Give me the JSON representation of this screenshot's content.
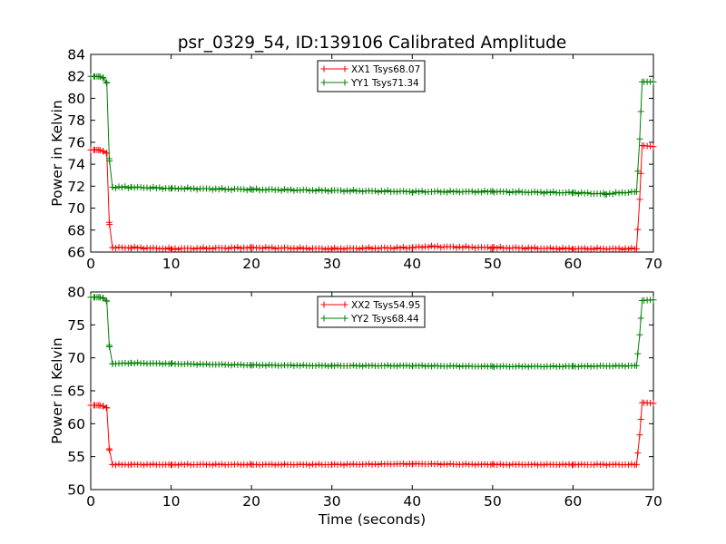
{
  "title": "psr_0329_54, ID:139106 Calibrated Amplitude",
  "colors": {
    "xx": "#ff0000",
    "yy": "#008000"
  },
  "chart_data": [
    {
      "type": "line",
      "xlabel": "",
      "ylabel": "Power in Kelvin",
      "xlim": [
        0,
        70
      ],
      "ylim": [
        66,
        84
      ],
      "xticks": [
        0,
        10,
        20,
        30,
        40,
        50,
        60,
        70
      ],
      "yticks": [
        66,
        68,
        70,
        72,
        74,
        76,
        78,
        80,
        82,
        84
      ],
      "legend": "top-center",
      "series": [
        {
          "name": "XX1 Tsys68.07",
          "color": "#ff0000",
          "marker": "+",
          "points": [
            [
              0,
              75.3
            ],
            [
              0.5,
              75.3
            ],
            [
              1,
              75.3
            ],
            [
              1.5,
              75.2
            ],
            [
              2,
              75.0
            ],
            [
              2.3,
              68.7
            ],
            [
              2.7,
              66.4
            ],
            [
              5,
              66.4
            ],
            [
              10,
              66.3
            ],
            [
              20,
              66.4
            ],
            [
              30,
              66.3
            ],
            [
              40,
              66.4
            ],
            [
              42,
              66.5
            ],
            [
              50,
              66.4
            ],
            [
              60,
              66.3
            ],
            [
              67.9,
              66.3
            ],
            [
              68.3,
              70.8
            ],
            [
              68.6,
              75.7
            ],
            [
              70,
              75.6
            ]
          ]
        },
        {
          "name": "YY1 Tsys71.34",
          "color": "#008000",
          "marker": "+",
          "points": [
            [
              0,
              82.0
            ],
            [
              0.5,
              82.0
            ],
            [
              1,
              82.0
            ],
            [
              1.5,
              81.9
            ],
            [
              2,
              81.4
            ],
            [
              2.3,
              74.5
            ],
            [
              2.7,
              71.9
            ],
            [
              5,
              71.9
            ],
            [
              10,
              71.8
            ],
            [
              20,
              71.7
            ],
            [
              30,
              71.6
            ],
            [
              40,
              71.5
            ],
            [
              50,
              71.5
            ],
            [
              60,
              71.4
            ],
            [
              64,
              71.3
            ],
            [
              67.9,
              71.5
            ],
            [
              68.3,
              76.3
            ],
            [
              68.6,
              81.5
            ],
            [
              70,
              81.5
            ]
          ]
        }
      ]
    },
    {
      "type": "line",
      "xlabel": "Time (seconds)",
      "ylabel": "Power in Kelvin",
      "xlim": [
        0,
        70
      ],
      "ylim": [
        50,
        80
      ],
      "xticks": [
        0,
        10,
        20,
        30,
        40,
        50,
        60,
        70
      ],
      "yticks": [
        50,
        55,
        60,
        65,
        70,
        75,
        80
      ],
      "legend": "top-center",
      "series": [
        {
          "name": "XX2 Tsys54.95",
          "color": "#ff0000",
          "marker": "+",
          "points": [
            [
              0,
              62.8
            ],
            [
              0.5,
              62.8
            ],
            [
              1,
              62.8
            ],
            [
              1.5,
              62.7
            ],
            [
              2,
              62.4
            ],
            [
              2.3,
              56.2
            ],
            [
              2.7,
              53.8
            ],
            [
              5,
              53.8
            ],
            [
              10,
              53.8
            ],
            [
              20,
              53.8
            ],
            [
              30,
              53.8
            ],
            [
              40,
              53.9
            ],
            [
              50,
              53.8
            ],
            [
              60,
              53.8
            ],
            [
              67.9,
              53.8
            ],
            [
              68.3,
              58.3
            ],
            [
              68.6,
              63.2
            ],
            [
              70,
              63.1
            ]
          ]
        },
        {
          "name": "YY2 Tsys68.44",
          "color": "#008000",
          "marker": "+",
          "points": [
            [
              0,
              79.2
            ],
            [
              0.5,
              79.2
            ],
            [
              1,
              79.2
            ],
            [
              1.5,
              79.1
            ],
            [
              2,
              78.6
            ],
            [
              2.3,
              71.9
            ],
            [
              2.7,
              69.1
            ],
            [
              5,
              69.2
            ],
            [
              10,
              69.1
            ],
            [
              20,
              68.9
            ],
            [
              30,
              68.8
            ],
            [
              40,
              68.8
            ],
            [
              50,
              68.7
            ],
            [
              60,
              68.7
            ],
            [
              67.9,
              68.8
            ],
            [
              68.3,
              73.5
            ],
            [
              68.6,
              78.7
            ],
            [
              70,
              78.8
            ]
          ]
        }
      ]
    }
  ]
}
